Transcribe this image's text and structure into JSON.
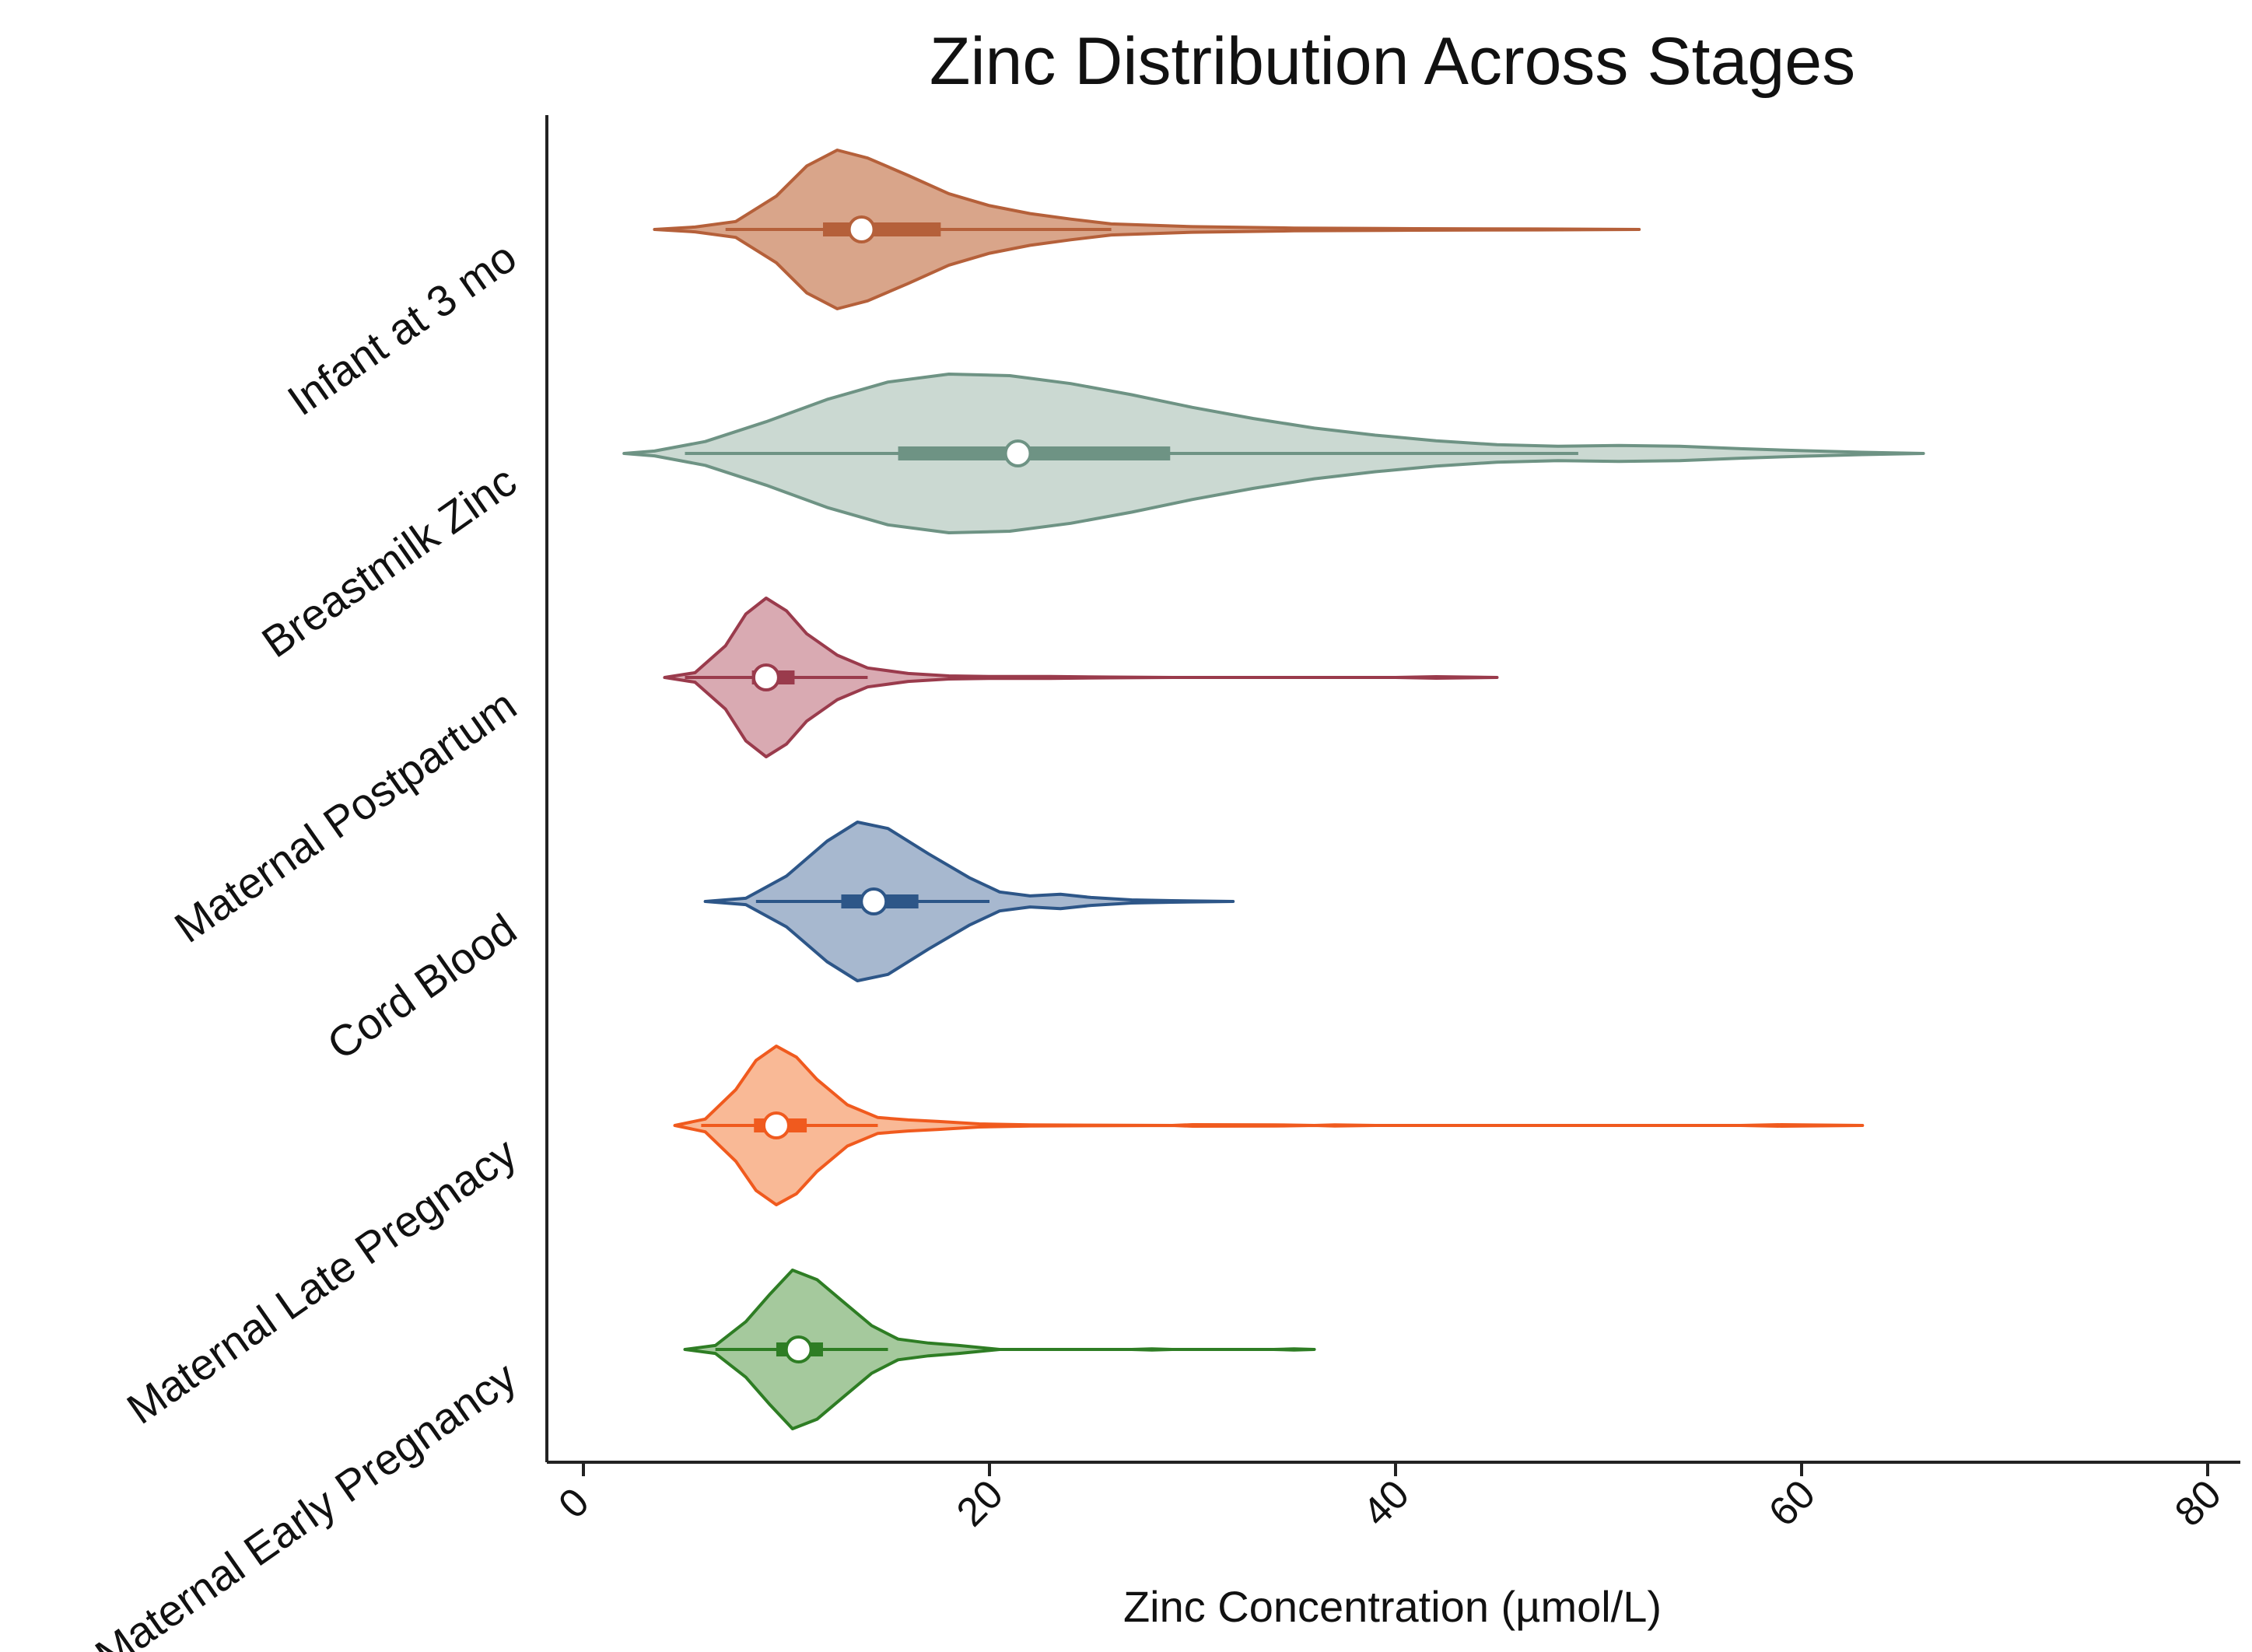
{
  "chart_data": {
    "type": "violin",
    "title": "Zinc Distribution Across Stages",
    "xlabel": "Zinc Concentration (µmol/L)",
    "ylabel": "",
    "xlim": [
      -2,
      82
    ],
    "xticks": [
      0,
      20,
      40,
      60,
      80
    ],
    "xtick_labels": [
      "0",
      "20",
      "40",
      "60",
      "80"
    ],
    "grid": false,
    "series": [
      {
        "name": "Infant at 3 mo",
        "color": "#b5603a",
        "fill": "#d9a58a",
        "median": 13.7,
        "q1": 11.8,
        "q3": 17.6,
        "whisker_low": 7.0,
        "whisker_high": 26.0,
        "density": [
          [
            3.5,
            0.0
          ],
          [
            5.5,
            0.03
          ],
          [
            7.5,
            0.1
          ],
          [
            9.5,
            0.42
          ],
          [
            11.0,
            0.8
          ],
          [
            12.5,
            1.0
          ],
          [
            14.0,
            0.9
          ],
          [
            16.0,
            0.68
          ],
          [
            18.0,
            0.45
          ],
          [
            20.0,
            0.3
          ],
          [
            22.0,
            0.2
          ],
          [
            24.0,
            0.13
          ],
          [
            26.0,
            0.07
          ],
          [
            30.0,
            0.035
          ],
          [
            35.0,
            0.018
          ],
          [
            41.0,
            0.01
          ],
          [
            47.0,
            0.006
          ],
          [
            52.0,
            0.0
          ]
        ]
      },
      {
        "name": "Breastmilk Zinc",
        "color": "#6e9384",
        "fill": "#cbd9d2",
        "median": 21.4,
        "q1": 15.5,
        "q3": 28.9,
        "whisker_low": 5.0,
        "whisker_high": 49.0,
        "density": [
          [
            2.0,
            0.0
          ],
          [
            3.5,
            0.03
          ],
          [
            6.0,
            0.15
          ],
          [
            9.0,
            0.4
          ],
          [
            12.0,
            0.68
          ],
          [
            15.0,
            0.9
          ],
          [
            18.0,
            1.0
          ],
          [
            21.0,
            0.98
          ],
          [
            24.0,
            0.88
          ],
          [
            27.0,
            0.74
          ],
          [
            30.0,
            0.58
          ],
          [
            33.0,
            0.44
          ],
          [
            36.0,
            0.32
          ],
          [
            39.0,
            0.23
          ],
          [
            42.0,
            0.16
          ],
          [
            45.0,
            0.11
          ],
          [
            48.0,
            0.09
          ],
          [
            51.0,
            0.1
          ],
          [
            54.0,
            0.09
          ],
          [
            57.0,
            0.06
          ],
          [
            60.0,
            0.035
          ],
          [
            63.0,
            0.015
          ],
          [
            66.0,
            0.0
          ]
        ]
      },
      {
        "name": "Maternal Postpartum",
        "color": "#9a3b4c",
        "fill": "#d9aab2",
        "median": 9.0,
        "q1": 8.3,
        "q3": 10.4,
        "whisker_low": 5.0,
        "whisker_high": 14.0,
        "density": [
          [
            4.0,
            0.0
          ],
          [
            5.5,
            0.06
          ],
          [
            7.0,
            0.4
          ],
          [
            8.0,
            0.8
          ],
          [
            9.0,
            1.0
          ],
          [
            10.0,
            0.84
          ],
          [
            11.0,
            0.55
          ],
          [
            12.5,
            0.28
          ],
          [
            14.0,
            0.12
          ],
          [
            16.0,
            0.05
          ],
          [
            18.0,
            0.02
          ],
          [
            20.0,
            0.012
          ],
          [
            23.0,
            0.012
          ],
          [
            26.0,
            0.005
          ],
          [
            29.0,
            0.0
          ],
          [
            40.0,
            0.0
          ],
          [
            42.0,
            0.01
          ],
          [
            45.0,
            0.0
          ]
        ]
      },
      {
        "name": "Cord Blood",
        "color": "#2d5688",
        "fill": "#a7b8cf",
        "median": 14.3,
        "q1": 12.7,
        "q3": 16.5,
        "whisker_low": 8.5,
        "whisker_high": 20.0,
        "density": [
          [
            6.0,
            0.0
          ],
          [
            8.0,
            0.04
          ],
          [
            10.0,
            0.32
          ],
          [
            12.0,
            0.76
          ],
          [
            13.5,
            1.0
          ],
          [
            15.0,
            0.92
          ],
          [
            17.0,
            0.6
          ],
          [
            19.0,
            0.3
          ],
          [
            20.5,
            0.12
          ],
          [
            22.0,
            0.07
          ],
          [
            23.5,
            0.09
          ],
          [
            25.0,
            0.05
          ],
          [
            27.0,
            0.02
          ],
          [
            29.0,
            0.01
          ],
          [
            32.0,
            0.0
          ]
        ]
      },
      {
        "name": "Maternal Late Pregnacy",
        "color": "#f05a1e",
        "fill": "#f9b996",
        "median": 9.5,
        "q1": 8.4,
        "q3": 11.0,
        "whisker_low": 5.8,
        "whisker_high": 14.5,
        "density": [
          [
            4.5,
            0.0
          ],
          [
            6.0,
            0.08
          ],
          [
            7.5,
            0.45
          ],
          [
            8.5,
            0.82
          ],
          [
            9.5,
            1.0
          ],
          [
            10.5,
            0.86
          ],
          [
            11.5,
            0.58
          ],
          [
            13.0,
            0.26
          ],
          [
            14.5,
            0.1
          ],
          [
            16.0,
            0.07
          ],
          [
            17.5,
            0.05
          ],
          [
            19.5,
            0.02
          ],
          [
            22.0,
            0.008
          ],
          [
            25.0,
            0.004
          ],
          [
            29.0,
            0.0
          ],
          [
            30.0,
            0.01
          ],
          [
            34.0,
            0.008
          ],
          [
            36.0,
            0.0
          ],
          [
            37.0,
            0.007
          ],
          [
            39.0,
            0.0
          ],
          [
            57.0,
            0.0
          ],
          [
            59.0,
            0.01
          ],
          [
            63.0,
            0.0
          ]
        ]
      },
      {
        "name": "Maternal Early Pregnancy",
        "color": "#2e7d24",
        "fill": "#a5c99d",
        "median": 10.6,
        "q1": 9.5,
        "q3": 11.8,
        "whisker_low": 6.5,
        "whisker_high": 15.0,
        "density": [
          [
            5.0,
            0.0
          ],
          [
            6.5,
            0.05
          ],
          [
            8.0,
            0.35
          ],
          [
            9.2,
            0.7
          ],
          [
            10.3,
            1.0
          ],
          [
            11.5,
            0.88
          ],
          [
            12.8,
            0.6
          ],
          [
            14.2,
            0.3
          ],
          [
            15.5,
            0.13
          ],
          [
            17.0,
            0.08
          ],
          [
            18.5,
            0.05
          ],
          [
            20.5,
            0.0
          ],
          [
            27.0,
            0.0
          ],
          [
            28.0,
            0.007
          ],
          [
            29.0,
            0.0
          ],
          [
            34.0,
            0.0
          ],
          [
            35.0,
            0.007
          ],
          [
            36.0,
            0.0
          ]
        ]
      }
    ]
  }
}
